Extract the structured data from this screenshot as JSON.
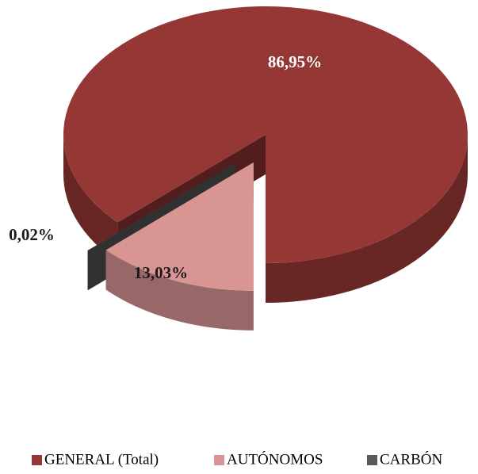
{
  "chart_data": {
    "type": "pie3d",
    "categories": [
      "GENERAL (Total)",
      "AUTÓNOMOS",
      "CARBÓN"
    ],
    "values": [
      86.95,
      13.03,
      0.02
    ],
    "value_labels": [
      "86,95%",
      "13,03%",
      "0,02%"
    ],
    "colors": [
      "#953735",
      "#d99594",
      "#595959"
    ],
    "legend": "bottom"
  }
}
